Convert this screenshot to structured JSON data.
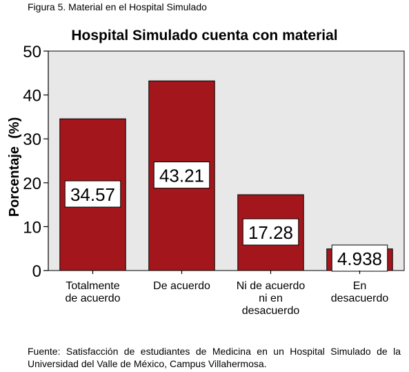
{
  "figure": {
    "caption": "Figura 5. Material en el Hospital Simulado"
  },
  "chart_data": {
    "type": "bar",
    "title": "Hospital Simulado cuenta con material",
    "xlabel": "",
    "ylabel": "Porcentaje  (%)",
    "ylim": [
      0,
      50
    ],
    "yticks": [
      "0",
      "10",
      "20",
      "30",
      "40",
      "50"
    ],
    "categories": [
      [
        "Totalmente",
        "de acuerdo"
      ],
      [
        "De acuerdo"
      ],
      [
        "Ni de acuerdo",
        "ni en",
        "desacuerdo"
      ],
      [
        "En",
        "desacuerdo"
      ]
    ],
    "values": [
      34.57,
      43.21,
      17.28,
      4.938
    ],
    "value_labels": [
      "34.57",
      "43.21",
      "17.28",
      "4.938"
    ],
    "bar_color": "#a3161b",
    "plot_background": "#e8e8e8",
    "grid": false,
    "legend": "none"
  },
  "source_note": "Fuente: Satisfacción de estudiantes de Medicina en un Hospital Simulado de la Universidad del Valle de México, Campus Villahermosa."
}
